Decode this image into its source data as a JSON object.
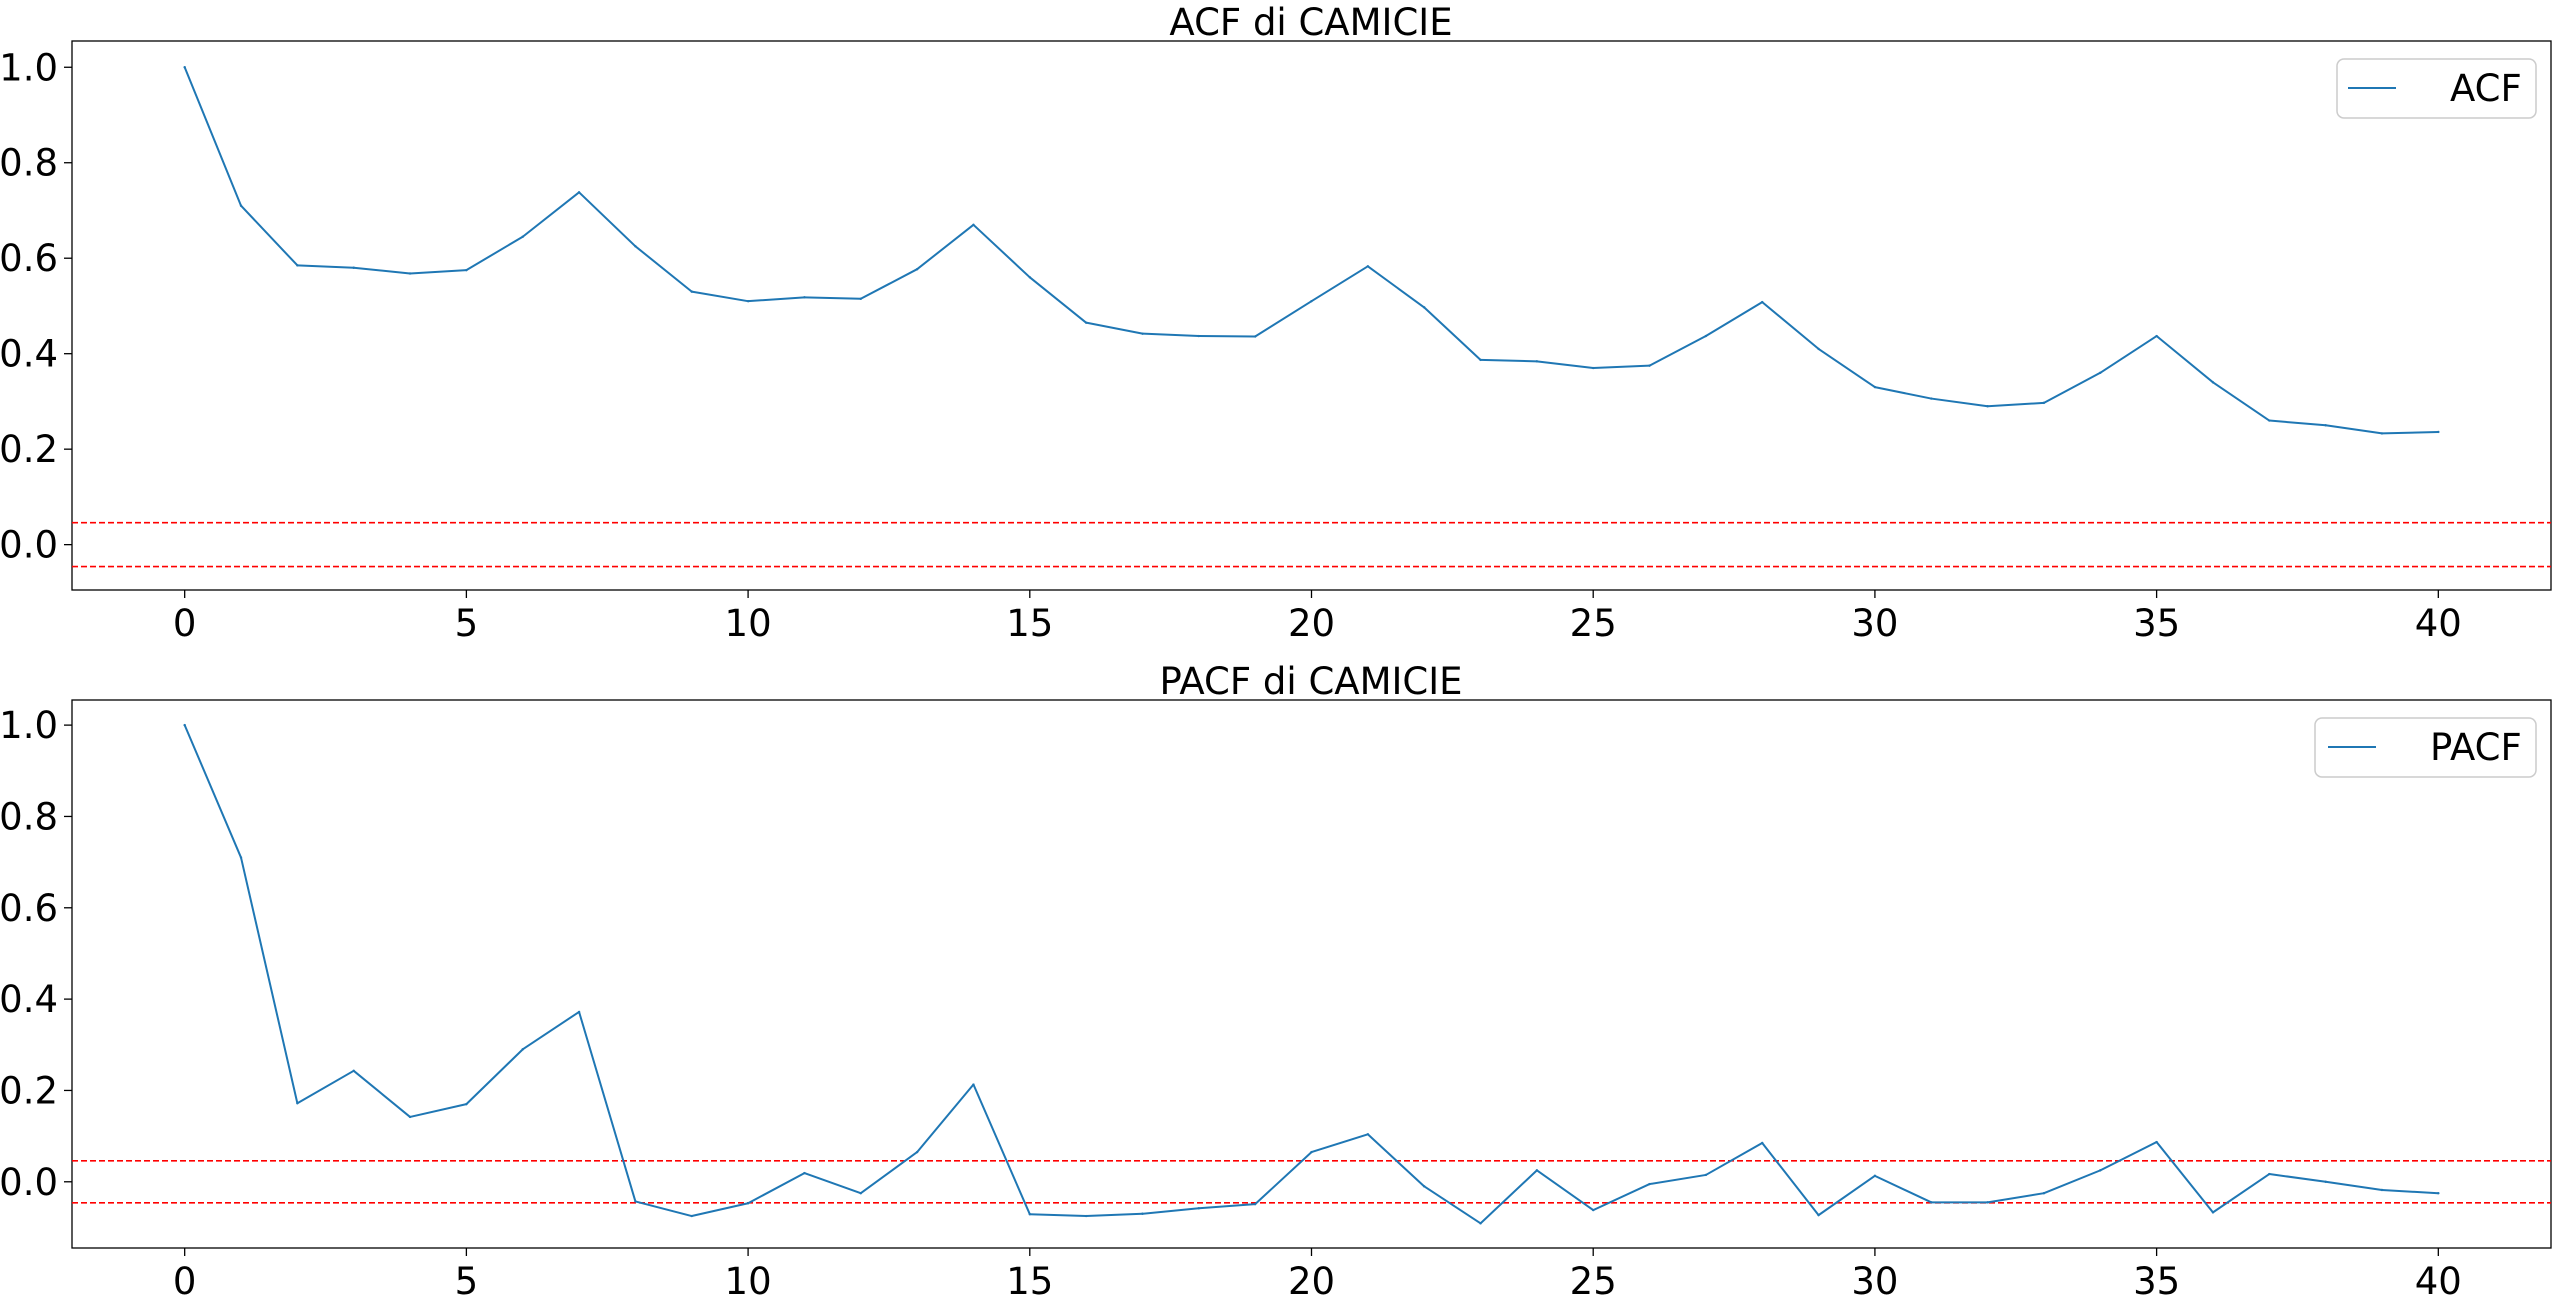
{
  "chart_data": [
    {
      "type": "line",
      "title": "ACF di CAMICIE",
      "xlabel": "",
      "ylabel": "",
      "xlim": [
        -2,
        42
      ],
      "ylim": [
        -0.095,
        1.055
      ],
      "xticks": [
        0,
        5,
        10,
        15,
        20,
        25,
        30,
        35,
        40
      ],
      "xtick_labels": [
        "0",
        "5",
        "10",
        "15",
        "20",
        "25",
        "30",
        "35",
        "40"
      ],
      "yticks": [
        0.0,
        0.2,
        0.4,
        0.6,
        0.8,
        1.0
      ],
      "ytick_labels": [
        "0.0",
        "0.2",
        "0.4",
        "0.6",
        "0.8",
        "1.0"
      ],
      "grid": false,
      "legend_position": "top-right",
      "series_color": "#1f77b4",
      "threshold_color": "#ff0000",
      "confidence_bounds": [
        0.046,
        -0.046
      ],
      "x": [
        0,
        1,
        2,
        3,
        4,
        5,
        6,
        7,
        8,
        9,
        10,
        11,
        12,
        13,
        14,
        15,
        16,
        17,
        18,
        19,
        20,
        21,
        22,
        23,
        24,
        25,
        26,
        27,
        28,
        29,
        30,
        31,
        32,
        33,
        34,
        35,
        36,
        37,
        38,
        39,
        40
      ],
      "series": [
        {
          "name": "ACF",
          "values": [
            1.0,
            0.71,
            0.585,
            0.58,
            0.568,
            0.575,
            0.645,
            0.738,
            0.625,
            0.53,
            0.51,
            0.518,
            0.515,
            0.577,
            0.67,
            0.56,
            0.465,
            0.442,
            0.437,
            0.436,
            0.51,
            0.583,
            0.497,
            0.387,
            0.384,
            0.37,
            0.375,
            0.437,
            0.508,
            0.41,
            0.33,
            0.306,
            0.29,
            0.297,
            0.36,
            0.437,
            0.34,
            0.26,
            0.25,
            0.233,
            0.236
          ]
        }
      ]
    },
    {
      "type": "line",
      "title": "PACF di CAMICIE",
      "xlabel": "",
      "ylabel": "",
      "xlim": [
        -2,
        42
      ],
      "ylim": [
        -0.145,
        1.055
      ],
      "xticks": [
        0,
        5,
        10,
        15,
        20,
        25,
        30,
        35,
        40
      ],
      "xtick_labels": [
        "0",
        "5",
        "10",
        "15",
        "20",
        "25",
        "30",
        "35",
        "40"
      ],
      "yticks": [
        0.0,
        0.2,
        0.4,
        0.6,
        0.8,
        1.0
      ],
      "ytick_labels": [
        "-0.0",
        "0.2",
        "0.4",
        "0.6",
        "0.8",
        "1.0"
      ],
      "grid": false,
      "legend_position": "top-right",
      "series_color": "#1f77b4",
      "threshold_color": "#ff0000",
      "confidence_bounds": [
        0.046,
        -0.046
      ],
      "x": [
        0,
        1,
        2,
        3,
        4,
        5,
        6,
        7,
        8,
        9,
        10,
        11,
        12,
        13,
        14,
        15,
        16,
        17,
        18,
        19,
        20,
        21,
        22,
        23,
        24,
        25,
        26,
        27,
        28,
        29,
        30,
        31,
        32,
        33,
        34,
        35,
        36,
        37,
        38,
        39,
        40
      ],
      "series": [
        {
          "name": "PACF",
          "values": [
            1.0,
            0.71,
            0.172,
            0.243,
            0.142,
            0.17,
            0.29,
            0.372,
            -0.043,
            -0.075,
            -0.047,
            0.019,
            -0.025,
            0.065,
            0.213,
            -0.071,
            -0.075,
            -0.07,
            -0.058,
            -0.049,
            0.065,
            0.104,
            -0.01,
            -0.091,
            0.025,
            -0.062,
            -0.005,
            0.015,
            0.085,
            -0.073,
            0.013,
            -0.045,
            -0.045,
            -0.025,
            0.025,
            0.087,
            -0.067,
            0.017,
            0.0,
            -0.018,
            -0.025
          ]
        }
      ]
    }
  ]
}
